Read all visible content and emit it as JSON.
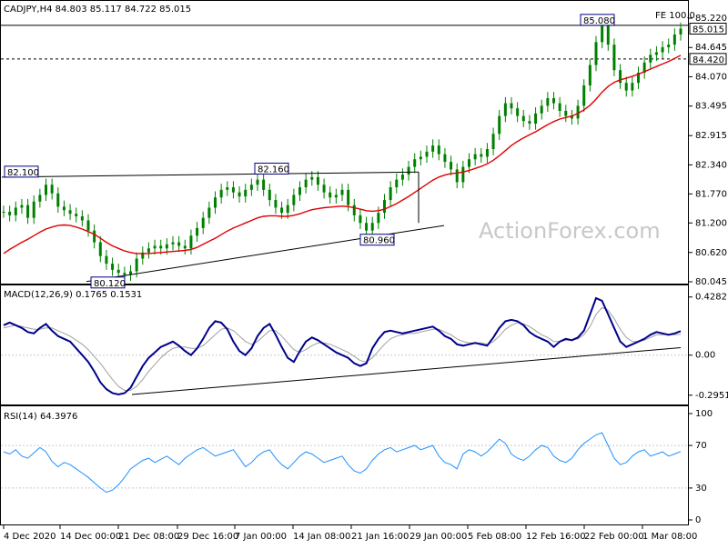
{
  "header": {
    "symbol_line": "CADJPY,H4  84.803 85.117 84.722 85.015"
  },
  "watermark": "ActionForex.com",
  "colors": {
    "candle": "#008000",
    "ma": "#e00000",
    "macd": "#00008b",
    "macd_signal": "#a0a0a0",
    "rsi": "#1e90ff",
    "trend": "#000000",
    "label_border": "#000080"
  },
  "chart_data": [
    {
      "type": "candlestick",
      "name": "price",
      "ylim": [
        80.045,
        85.22
      ],
      "y_ticks": [
        "85.220",
        "84.645",
        "84.070",
        "83.495",
        "82.915",
        "82.340",
        "81.770",
        "81.200",
        "80.620",
        "80.045"
      ],
      "last_price": "85.015",
      "level_price": "84.420",
      "fe_label": "FE 100.0",
      "annotations": [
        {
          "label": "82.100",
          "value": 82.1
        },
        {
          "label": "82.160",
          "value": 82.16
        },
        {
          "label": "80.960",
          "value": 80.96
        },
        {
          "label": "80.120",
          "value": 80.12
        },
        {
          "label": "85.080",
          "value": 85.08
        }
      ],
      "close_series": [
        81.42,
        81.35,
        81.5,
        81.55,
        81.3,
        81.62,
        81.75,
        81.95,
        81.78,
        81.52,
        81.45,
        81.38,
        81.33,
        81.25,
        81.05,
        80.82,
        80.55,
        80.4,
        80.28,
        80.22,
        80.18,
        80.25,
        80.5,
        80.62,
        80.7,
        80.75,
        80.7,
        80.78,
        80.82,
        80.75,
        80.7,
        80.95,
        81.1,
        81.3,
        81.5,
        81.7,
        81.85,
        81.9,
        81.8,
        81.72,
        81.85,
        81.95,
        82.05,
        81.85,
        81.65,
        81.5,
        81.4,
        81.55,
        81.75,
        81.9,
        82.05,
        82.1,
        81.95,
        81.8,
        81.7,
        81.75,
        81.85,
        81.55,
        81.35,
        81.2,
        81.05,
        81.2,
        81.4,
        81.65,
        81.9,
        82.05,
        82.15,
        82.3,
        82.45,
        82.5,
        82.6,
        82.72,
        82.55,
        82.4,
        82.25,
        82.0,
        82.3,
        82.45,
        82.55,
        82.5,
        82.65,
        82.95,
        83.3,
        83.55,
        83.45,
        83.3,
        83.2,
        83.15,
        83.35,
        83.5,
        83.65,
        83.55,
        83.4,
        83.3,
        83.25,
        83.5,
        83.9,
        84.3,
        84.75,
        85.08,
        84.7,
        84.2,
        83.95,
        83.8,
        83.95,
        84.15,
        84.35,
        84.5,
        84.55,
        84.65,
        84.7,
        84.9,
        85.015
      ],
      "ma_series": [
        80.6,
        80.68,
        80.75,
        80.82,
        80.88,
        80.95,
        81.02,
        81.08,
        81.12,
        81.15,
        81.16,
        81.15,
        81.12,
        81.08,
        81.03,
        80.98,
        80.9,
        80.82,
        80.75,
        80.7,
        80.65,
        80.62,
        80.6,
        80.6,
        80.6,
        80.61,
        80.62,
        80.63,
        80.64,
        80.65,
        80.66,
        80.68,
        80.72,
        80.78,
        80.84,
        80.9,
        80.97,
        81.04,
        81.1,
        81.15,
        81.2,
        81.25,
        81.3,
        81.33,
        81.34,
        81.34,
        81.33,
        81.33,
        81.35,
        81.38,
        81.42,
        81.46,
        81.48,
        81.5,
        81.51,
        81.52,
        81.53,
        81.52,
        81.5,
        81.47,
        81.44,
        81.43,
        81.44,
        81.47,
        81.52,
        81.58,
        81.65,
        81.72,
        81.8,
        81.88,
        81.96,
        82.04,
        82.1,
        82.14,
        82.17,
        82.18,
        82.2,
        82.23,
        82.27,
        82.31,
        82.36,
        82.43,
        82.52,
        82.62,
        82.72,
        82.8,
        82.87,
        82.93,
        82.99,
        83.06,
        83.13,
        83.19,
        83.24,
        83.27,
        83.3,
        83.35,
        83.42,
        83.51,
        83.63,
        83.77,
        83.88,
        83.96,
        84.01,
        84.04,
        84.08,
        84.12,
        84.17,
        84.22,
        84.27,
        84.32,
        84.37,
        84.43,
        84.49
      ]
    },
    {
      "type": "line",
      "name": "MACD(12,26,9)",
      "header": "MACD(12,26,9) 0.1765 0.1531",
      "ylim": [
        -0.33,
        0.46
      ],
      "y_ticks": [
        "0.4282",
        "0.00",
        "-0.2951"
      ],
      "series": [
        {
          "values": [
            0.22,
            0.24,
            0.22,
            0.2,
            0.17,
            0.16,
            0.2,
            0.23,
            0.18,
            0.14,
            0.12,
            0.1,
            0.05,
            0.0,
            -0.05,
            -0.12,
            -0.2,
            -0.25,
            -0.28,
            -0.29,
            -0.28,
            -0.24,
            -0.16,
            -0.08,
            -0.02,
            0.02,
            0.06,
            0.08,
            0.1,
            0.07,
            0.03,
            0.0,
            0.05,
            0.12,
            0.2,
            0.25,
            0.24,
            0.19,
            0.1,
            0.03,
            0.0,
            0.05,
            0.14,
            0.2,
            0.23,
            0.15,
            0.06,
            -0.02,
            -0.05,
            0.03,
            0.1,
            0.13,
            0.11,
            0.08,
            0.05,
            0.02,
            0.0,
            -0.02,
            -0.06,
            -0.08,
            -0.06,
            0.05,
            0.12,
            0.17,
            0.18,
            0.17,
            0.16,
            0.17,
            0.18,
            0.19,
            0.2,
            0.21,
            0.18,
            0.14,
            0.12,
            0.08,
            0.07,
            0.08,
            0.09,
            0.08,
            0.07,
            0.13,
            0.2,
            0.25,
            0.26,
            0.25,
            0.22,
            0.17,
            0.14,
            0.12,
            0.1,
            0.06,
            0.1,
            0.12,
            0.11,
            0.13,
            0.18,
            0.3,
            0.42,
            0.4,
            0.3,
            0.2,
            0.1,
            0.06,
            0.08,
            0.1,
            0.12,
            0.15,
            0.17,
            0.16,
            0.15,
            0.16,
            0.1765
          ]
        },
        {
          "values": [
            0.2,
            0.21,
            0.22,
            0.21,
            0.2,
            0.19,
            0.19,
            0.2,
            0.2,
            0.18,
            0.16,
            0.14,
            0.11,
            0.08,
            0.04,
            -0.01,
            -0.06,
            -0.12,
            -0.18,
            -0.23,
            -0.26,
            -0.26,
            -0.23,
            -0.18,
            -0.12,
            -0.07,
            -0.02,
            0.02,
            0.05,
            0.06,
            0.06,
            0.05,
            0.05,
            0.07,
            0.11,
            0.15,
            0.19,
            0.2,
            0.18,
            0.14,
            0.1,
            0.08,
            0.1,
            0.14,
            0.18,
            0.18,
            0.14,
            0.09,
            0.04,
            0.02,
            0.04,
            0.07,
            0.09,
            0.09,
            0.08,
            0.06,
            0.04,
            0.02,
            -0.01,
            -0.04,
            -0.05,
            -0.02,
            0.03,
            0.08,
            0.12,
            0.14,
            0.15,
            0.16,
            0.16,
            0.17,
            0.18,
            0.19,
            0.19,
            0.17,
            0.15,
            0.12,
            0.1,
            0.09,
            0.09,
            0.09,
            0.08,
            0.1,
            0.14,
            0.19,
            0.22,
            0.24,
            0.23,
            0.21,
            0.18,
            0.15,
            0.13,
            0.1,
            0.1,
            0.11,
            0.11,
            0.12,
            0.15,
            0.21,
            0.3,
            0.35,
            0.33,
            0.27,
            0.19,
            0.13,
            0.1,
            0.1,
            0.11,
            0.13,
            0.15,
            0.15,
            0.15,
            0.15,
            0.1531
          ]
        }
      ]
    },
    {
      "type": "line",
      "name": "RSI(14)",
      "header": "RSI(14) 64.3976",
      "ylim": [
        0,
        100
      ],
      "y_ticks": [
        "100",
        "70",
        "30",
        "0"
      ],
      "levels": [
        70,
        30
      ],
      "series": [
        {
          "values": [
            64,
            62,
            66,
            60,
            58,
            63,
            68,
            64,
            55,
            50,
            54,
            52,
            48,
            44,
            40,
            35,
            30,
            26,
            28,
            33,
            40,
            48,
            52,
            56,
            58,
            54,
            57,
            60,
            56,
            52,
            58,
            62,
            66,
            68,
            64,
            60,
            62,
            64,
            66,
            58,
            50,
            54,
            60,
            64,
            66,
            58,
            52,
            48,
            54,
            60,
            64,
            62,
            58,
            54,
            56,
            58,
            60,
            52,
            46,
            44,
            48,
            56,
            62,
            66,
            68,
            64,
            66,
            68,
            70,
            66,
            68,
            70,
            60,
            54,
            52,
            48,
            62,
            66,
            64,
            60,
            64,
            70,
            76,
            72,
            62,
            58,
            56,
            60,
            66,
            70,
            68,
            60,
            56,
            54,
            58,
            66,
            72,
            76,
            80,
            82,
            70,
            58,
            52,
            54,
            60,
            64,
            66,
            60,
            62,
            64,
            60,
            62,
            64.3976
          ]
        }
      ]
    }
  ],
  "x_axis": {
    "labels": [
      "4 Dec 2020",
      "14 Dec 00:00",
      "21 Dec 08:00",
      "29 Dec 16:00",
      "7 Jan 00:00",
      "14 Jan 08:00",
      "21 Jan 16:00",
      "29 Jan 00:00",
      "5 Feb 08:00",
      "12 Feb 16:00",
      "22 Feb 00:00",
      "1 Mar 08:00"
    ]
  }
}
